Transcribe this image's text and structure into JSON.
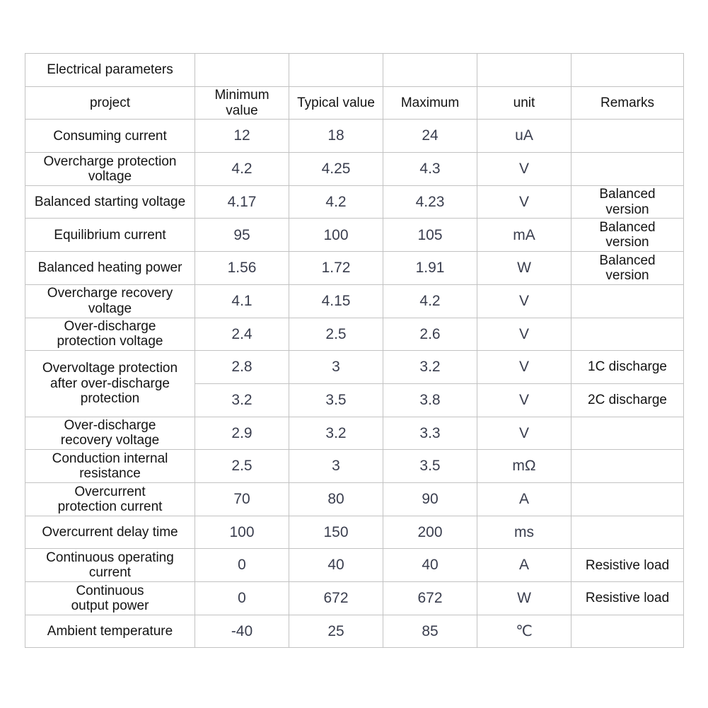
{
  "table": {
    "title": "Electrical parameters",
    "columns": [
      "project",
      "Minimum\nvalue",
      "Typical value",
      "Maximum",
      "unit",
      "Remarks"
    ],
    "rows": [
      {
        "project": "Consuming current",
        "min": "12",
        "typ": "18",
        "max": "24",
        "unit": "uA",
        "remarks": ""
      },
      {
        "project": "Overcharge protection\nvoltage",
        "min": "4.2",
        "typ": "4.25",
        "max": "4.3",
        "unit": "V",
        "remarks": ""
      },
      {
        "project": "Balanced starting voltage",
        "min": "4.17",
        "typ": "4.2",
        "max": "4.23",
        "unit": "V",
        "remarks": "Balanced\nversion"
      },
      {
        "project": "Equilibrium current",
        "min": "95",
        "typ": "100",
        "max": "105",
        "unit": "mA",
        "remarks": "Balanced\nversion"
      },
      {
        "project": "Balanced heating power",
        "min": "1.56",
        "typ": "1.72",
        "max": "1.91",
        "unit": "W",
        "remarks": "Balanced\nversion"
      },
      {
        "project": "Overcharge recovery\nvoltage",
        "min": "4.1",
        "typ": "4.15",
        "max": "4.2",
        "unit": "V",
        "remarks": ""
      },
      {
        "project": "Over-discharge\nprotection voltage",
        "min": "2.4",
        "typ": "2.5",
        "max": "2.6",
        "unit": "V",
        "remarks": ""
      },
      {
        "project": "Overvoltage protection\nafter over-discharge\nprotection",
        "project_rowspan": 2,
        "min": "2.8",
        "typ": "3",
        "max": "3.2",
        "unit": "V",
        "remarks": "1C discharge"
      },
      {
        "project": null,
        "min": "3.2",
        "typ": "3.5",
        "max": "3.8",
        "unit": "V",
        "remarks": "2C discharge"
      },
      {
        "project": "Over-discharge\nrecovery voltage",
        "min": "2.9",
        "typ": "3.2",
        "max": "3.3",
        "unit": "V",
        "remarks": ""
      },
      {
        "project": "Conduction internal\nresistance",
        "min": "2.5",
        "typ": "3",
        "max": "3.5",
        "unit": "mΩ",
        "remarks": ""
      },
      {
        "project": "Overcurrent\nprotection current",
        "min": "70",
        "typ": "80",
        "max": "90",
        "unit": "A",
        "remarks": ""
      },
      {
        "project": "Overcurrent delay time",
        "min": "100",
        "typ": "150",
        "max": "200",
        "unit": "ms",
        "remarks": ""
      },
      {
        "project": "Continuous operating\ncurrent",
        "min": "0",
        "typ": "40",
        "max": "40",
        "unit": "A",
        "remarks": "Resistive load"
      },
      {
        "project": "Continuous\noutput power",
        "min": "0",
        "typ": "672",
        "max": "672",
        "unit": "W",
        "remarks": "Resistive load"
      },
      {
        "project": "Ambient temperature",
        "min": "-40",
        "typ": "25",
        "max": "85",
        "unit": "℃",
        "remarks": ""
      }
    ]
  },
  "colors": {
    "background": "#ffffff",
    "grid_border": "#c2c2c2",
    "label_text": "#141414",
    "value_text": "#3a3e4e"
  }
}
